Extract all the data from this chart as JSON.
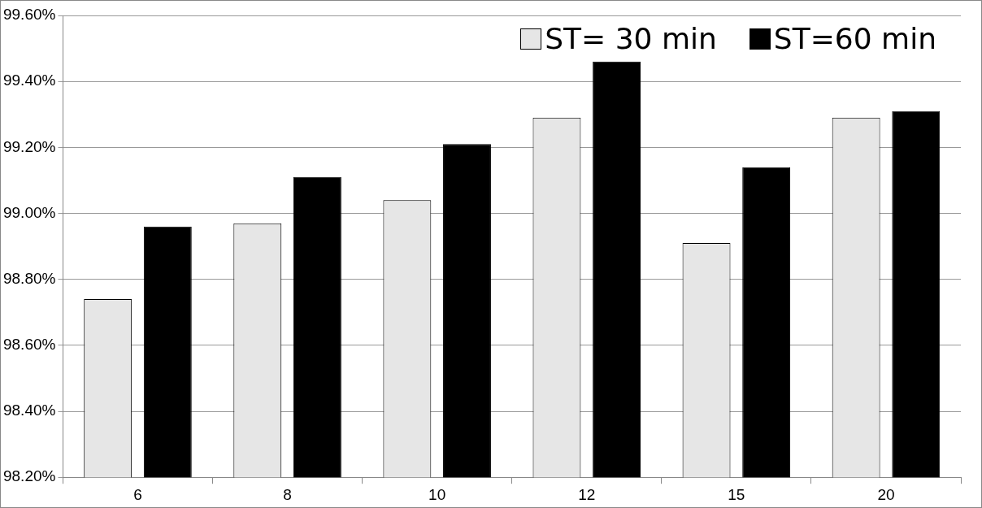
{
  "chart_data": {
    "type": "bar",
    "categories": [
      "6",
      "8",
      "10",
      "12",
      "15",
      "20"
    ],
    "series": [
      {
        "name": "ST= 30 min",
        "color": "#e6e6e6",
        "values": [
          98.74,
          98.97,
          99.04,
          99.29,
          98.91,
          99.29
        ]
      },
      {
        "name": "ST=60 min",
        "color": "#000000",
        "values": [
          98.96,
          99.11,
          99.21,
          99.46,
          99.14,
          99.31
        ]
      }
    ],
    "ylim": [
      98.2,
      99.6
    ],
    "yticks": [
      {
        "value": 98.2,
        "label": "98.20%"
      },
      {
        "value": 98.4,
        "label": "98.40%"
      },
      {
        "value": 98.6,
        "label": "98.60%"
      },
      {
        "value": 98.8,
        "label": "98.80%"
      },
      {
        "value": 99.0,
        "label": "99.00%"
      },
      {
        "value": 99.2,
        "label": "99.20%"
      },
      {
        "value": 99.4,
        "label": "99.40%"
      },
      {
        "value": 99.6,
        "label": "99.60%"
      }
    ],
    "grid": "y",
    "legend": "top right"
  }
}
